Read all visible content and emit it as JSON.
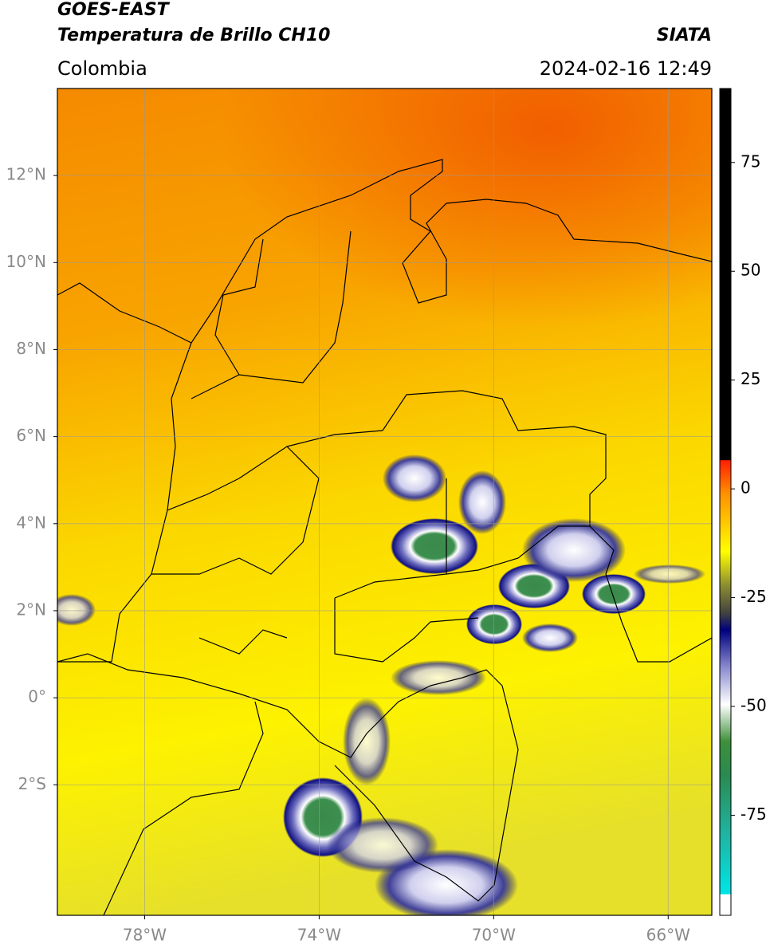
{
  "header": {
    "title": "GOES-EAST",
    "subtitle": "Temperatura de Brillo CH10",
    "region": "Colombia",
    "source": "SIATA",
    "datetime": "2024-02-16 12:49"
  },
  "map": {
    "xlim": [
      -80,
      -65
    ],
    "ylim": [
      -5,
      14
    ],
    "xticks": [
      {
        "value": -78,
        "label": "78°W"
      },
      {
        "value": -74,
        "label": "74°W"
      },
      {
        "value": -70,
        "label": "70°W"
      },
      {
        "value": -66,
        "label": "66°W"
      }
    ],
    "yticks": [
      {
        "value": 12,
        "label": "12°N"
      },
      {
        "value": 10,
        "label": "10°N"
      },
      {
        "value": 8,
        "label": "8°N"
      },
      {
        "value": 6,
        "label": "6°N"
      },
      {
        "value": 4,
        "label": "4°N"
      },
      {
        "value": 2,
        "label": "2°N"
      },
      {
        "value": 0,
        "label": "0°"
      },
      {
        "value": -2,
        "label": "2°S"
      }
    ],
    "grid": true
  },
  "colorbar": {
    "lim": [
      -98,
      92
    ],
    "ticks": [
      75,
      50,
      25,
      0,
      -25,
      -50,
      -75
    ]
  }
}
